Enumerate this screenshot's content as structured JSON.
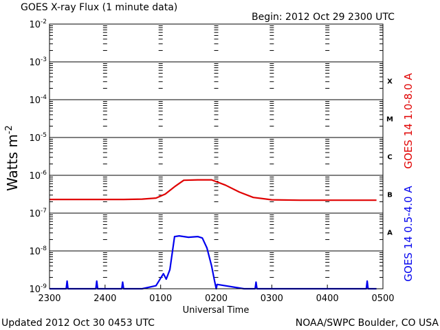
{
  "header": {
    "title": "GOES X-ray Flux (1 minute data)",
    "begin": "Begin: 2012 Oct 29 2300 UTC"
  },
  "footer": {
    "updated": "Updated 2012 Oct 30 0453 UTC",
    "credit": "NOAA/SWPC Boulder, CO USA"
  },
  "colors": {
    "long_channel": "#e00000",
    "short_channel": "#0000ee",
    "axes": "#000000",
    "background": "#ffffff"
  },
  "chart_data": {
    "type": "line",
    "title": "GOES X-ray Flux (1 minute data)",
    "xlabel": "Universal Time",
    "ylabel": "Watts m",
    "ylabel_superscript": "-2",
    "y_scale": "log",
    "ylim": [
      1e-09,
      0.01
    ],
    "x_range_utc": [
      "2012-10-29 23:00",
      "2012-10-30 05:00"
    ],
    "x_ticks": [
      {
        "label": "2300",
        "time": "2012-10-29 23:00"
      },
      {
        "label": "2400",
        "time": "2012-10-30 00:00"
      },
      {
        "label": "0100",
        "time": "2012-10-30 01:00"
      },
      {
        "label": "0200",
        "time": "2012-10-30 02:00"
      },
      {
        "label": "0300",
        "time": "2012-10-30 03:00"
      },
      {
        "label": "0400",
        "time": "2012-10-30 04:00"
      },
      {
        "label": "0500",
        "time": "2012-10-30 05:00"
      }
    ],
    "y_ticks": [
      {
        "value": 1e-09,
        "base": "10",
        "exp": "-9"
      },
      {
        "value": 1e-08,
        "base": "10",
        "exp": "-8"
      },
      {
        "value": 1e-07,
        "base": "10",
        "exp": "-7"
      },
      {
        "value": 1e-06,
        "base": "10",
        "exp": "-6"
      },
      {
        "value": 1e-05,
        "base": "10",
        "exp": "-5"
      },
      {
        "value": 0.0001,
        "base": "10",
        "exp": "-4"
      },
      {
        "value": 0.001,
        "base": "10",
        "exp": "-3"
      },
      {
        "value": 0.01,
        "base": "10",
        "exp": "-2"
      }
    ],
    "flare_classes": [
      {
        "label": "X",
        "lower": 0.0001,
        "upper": 0.001
      },
      {
        "label": "M",
        "lower": 1e-05,
        "upper": 0.0001
      },
      {
        "label": "C",
        "lower": 1e-06,
        "upper": 1e-05
      },
      {
        "label": "B",
        "lower": 1e-07,
        "upper": 1e-06
      },
      {
        "label": "A",
        "lower": 1e-08,
        "upper": 1e-07
      }
    ],
    "grid": {
      "horizontal_decades": true,
      "vertical_dashed_at_hours": true
    },
    "legend_placement": "right-vertical",
    "series": [
      {
        "name": "GOES 14 1.0-8.0 A",
        "color": "#e00000",
        "x": [
          "2012-10-29 23:00",
          "2012-10-29 23:20",
          "2012-10-29 23:40",
          "2012-10-30 00:00",
          "2012-10-30 00:20",
          "2012-10-30 00:40",
          "2012-10-30 00:55",
          "2012-10-30 01:05",
          "2012-10-30 01:15",
          "2012-10-30 01:25",
          "2012-10-30 01:40",
          "2012-10-30 01:55",
          "2012-10-30 02:10",
          "2012-10-30 02:25",
          "2012-10-30 02:40",
          "2012-10-30 03:00",
          "2012-10-30 03:30",
          "2012-10-30 04:00",
          "2012-10-30 04:30",
          "2012-10-30 04:53"
        ],
        "y": [
          2.3e-07,
          2.3e-07,
          2.3e-07,
          2.3e-07,
          2.3e-07,
          2.35e-07,
          2.5e-07,
          3.2e-07,
          5e-07,
          7.4e-07,
          7.6e-07,
          7.6e-07,
          5.5e-07,
          3.6e-07,
          2.6e-07,
          2.25e-07,
          2.2e-07,
          2.2e-07,
          2.2e-07,
          2.2e-07
        ]
      },
      {
        "name": "GOES 14 0.5-4.0 A",
        "color": "#0000ee",
        "x": [
          "2012-10-29 23:00",
          "2012-10-29 23:18",
          "2012-10-29 23:19",
          "2012-10-29 23:20",
          "2012-10-29 23:50",
          "2012-10-29 23:51",
          "2012-10-29 23:52",
          "2012-10-30 00:18",
          "2012-10-30 00:19",
          "2012-10-30 00:20",
          "2012-10-30 00:40",
          "2012-10-30 00:55",
          "2012-10-30 01:03",
          "2012-10-30 01:06",
          "2012-10-30 01:10",
          "2012-10-30 01:15",
          "2012-10-30 01:20",
          "2012-10-30 01:30",
          "2012-10-30 01:40",
          "2012-10-30 01:45",
          "2012-10-30 01:50",
          "2012-10-30 01:55",
          "2012-10-30 01:58",
          "2012-10-30 02:00",
          "2012-10-30 02:01",
          "2012-10-30 02:30",
          "2012-10-30 02:42",
          "2012-10-30 02:43",
          "2012-10-30 02:44",
          "2012-10-30 03:00",
          "2012-10-30 03:30",
          "2012-10-30 04:00",
          "2012-10-30 04:30",
          "2012-10-30 04:42",
          "2012-10-30 04:43",
          "2012-10-30 04:44",
          "2012-10-30 04:53"
        ],
        "y": [
          1e-09,
          1e-09,
          1.6e-09,
          1e-09,
          1e-09,
          1.6e-09,
          1e-09,
          1e-09,
          1.5e-09,
          1e-09,
          1e-09,
          1.2e-09,
          2.5e-09,
          1.8e-09,
          3.2e-09,
          2.4e-08,
          2.5e-08,
          2.3e-08,
          2.4e-08,
          2.2e-08,
          1.2e-08,
          4e-09,
          1.7e-09,
          1e-09,
          1.3e-09,
          1e-09,
          1e-09,
          1.5e-09,
          1e-09,
          1e-09,
          1e-09,
          1e-09,
          1e-09,
          1e-09,
          1.6e-09,
          1e-09,
          1e-09
        ]
      }
    ]
  }
}
